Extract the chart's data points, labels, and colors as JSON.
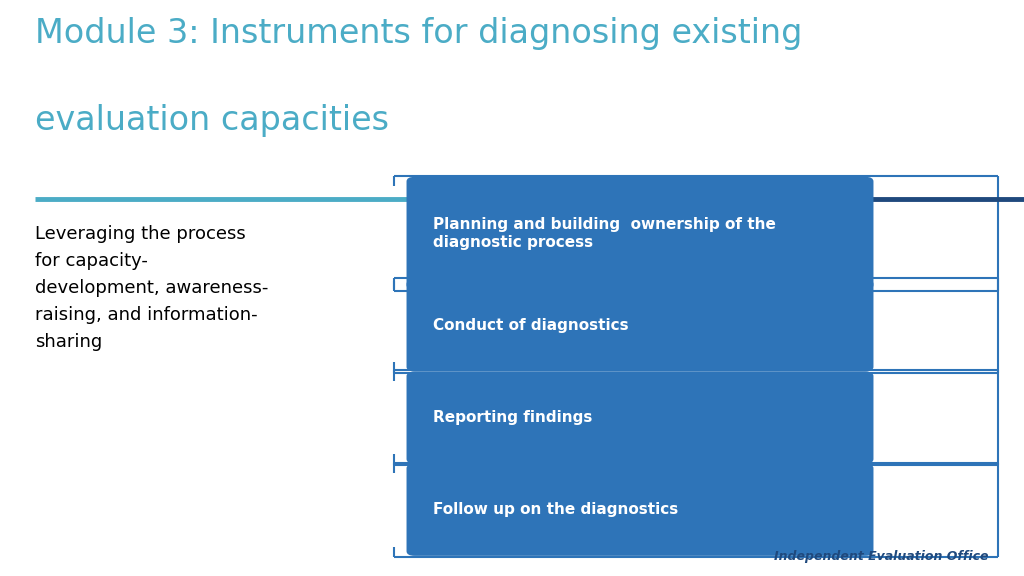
{
  "title_line1": "Module 3: Instruments for diagnosing existing",
  "title_line2": "evaluation capacities",
  "title_color": "#4BACC6",
  "title_fontsize": 24,
  "separator_color1": "#4BACC6",
  "separator_color2": "#1F497D",
  "background_color": "#FFFFFF",
  "blue_box_color": "#2E74B8",
  "outline_box_border": "#2E74B8",
  "items": [
    "Planning and building  ownership of the\ndiagnostic process",
    "Conduct of diagnostics",
    "Reporting findings",
    "Follow up on the diagnostics"
  ],
  "item_fontsize": 11,
  "item_text_color": "#FFFFFF",
  "side_text": "Leveraging the process\nfor capacity-\ndevelopment, awareness-\nraising, and information-\nsharing",
  "side_text_color": "#000000",
  "side_text_fontsize": 13,
  "footer_text": "Independent Evaluation Office",
  "footer_color": "#1F497D",
  "footer_fontsize": 9
}
